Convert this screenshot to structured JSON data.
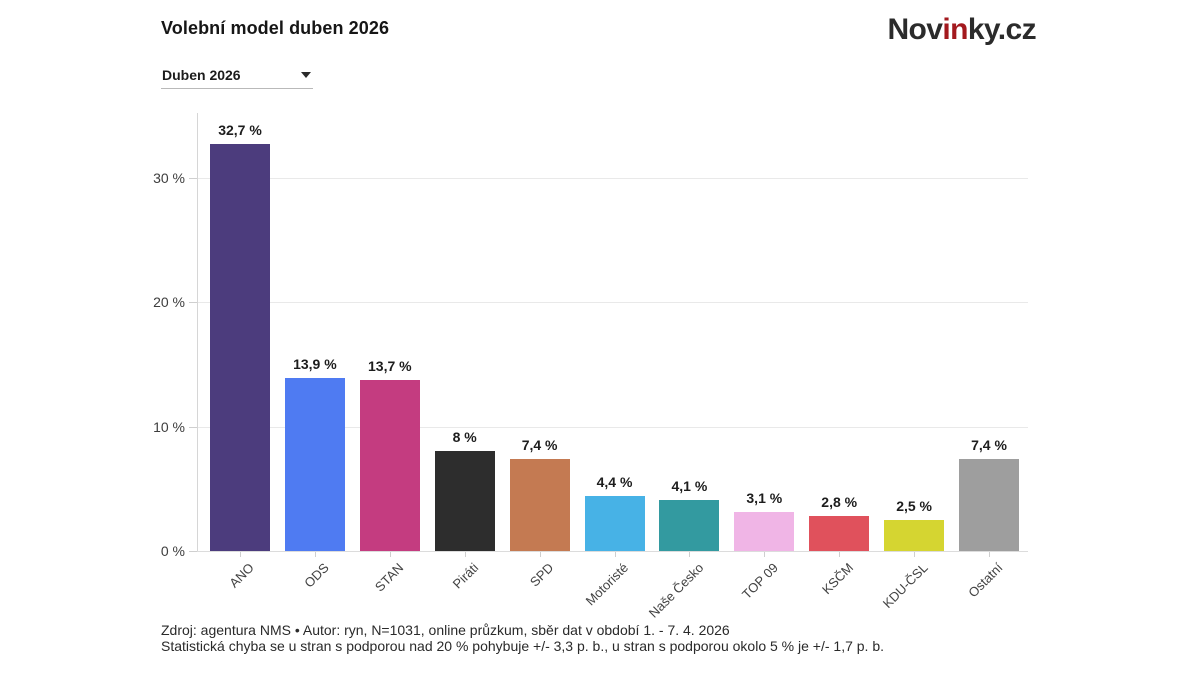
{
  "header": {
    "title": "Volební model duben 2026",
    "logo": {
      "prefix": "Nov",
      "highlight": "in",
      "suffix": "ky.cz",
      "dark_color": "#2b2b2b",
      "red_color": "#a3191e"
    }
  },
  "controls": {
    "period_dropdown": {
      "value": "Duben 2026"
    }
  },
  "chart_data": {
    "type": "bar",
    "title": "Volební model duben 2026",
    "xlabel": "",
    "ylabel": "",
    "ylim": [
      0,
      35.2
    ],
    "grid": true,
    "categories": [
      "ANO",
      "ODS",
      "STAN",
      "Piráti",
      "SPD",
      "Motoristé",
      "Naše Česko",
      "TOP 09",
      "KSČM",
      "KDU-ČSL",
      "Ostatní"
    ],
    "values": [
      32.7,
      13.9,
      13.7,
      8,
      7.4,
      4.4,
      4.1,
      3.1,
      2.8,
      2.5,
      7.4
    ],
    "value_labels": [
      "32,7 %",
      "13,9 %",
      "13,7 %",
      "8 %",
      "7,4 %",
      "4,4 %",
      "4,1 %",
      "3,1 %",
      "2,8 %",
      "2,5 %",
      "7,4 %"
    ],
    "bar_colors": [
      "#4c3c7d",
      "#4f7bf2",
      "#c43c80",
      "#2d2d2d",
      "#c47a52",
      "#47b2e6",
      "#339aa0",
      "#f0b5e6",
      "#e0515c",
      "#d5d531",
      "#9e9e9e"
    ],
    "y_ticks": [
      {
        "label": "0 %",
        "value": 0
      },
      {
        "label": "10 %",
        "value": 10
      },
      {
        "label": "20 %",
        "value": 20
      },
      {
        "label": "30 %",
        "value": 30
      }
    ]
  },
  "footer": {
    "line1": "Zdroj: agentura NMS • Autor: ryn, N=1031, online průzkum, sběr dat v období 1. - 7. 4. 2026",
    "line2": "Statistická chyba se u stran s podporou nad 20 % pohybuje +/- 3,3 p. b., u stran s podporou okolo 5 % je +/- 1,7 p. b."
  }
}
